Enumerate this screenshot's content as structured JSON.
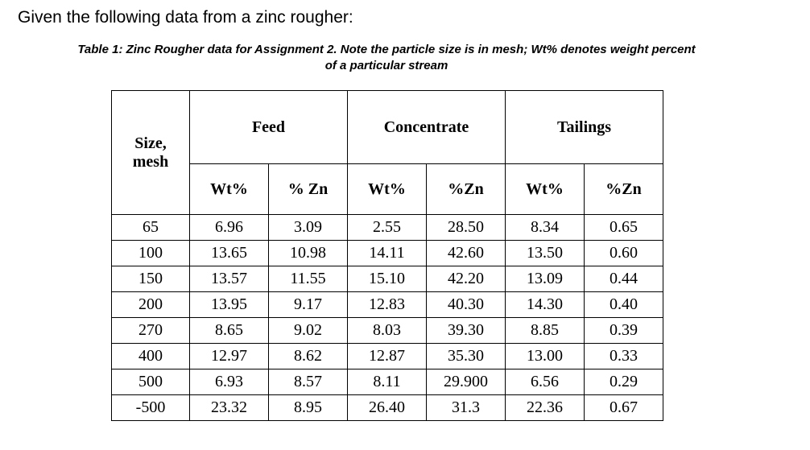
{
  "intro": "Given the following data from a zinc rougher:",
  "caption": {
    "line1": "Table 1: Zinc Rougher data for Assignment 2.  Note the particle size is in mesh; Wt% denotes weight percent",
    "line2": "of a particular stream"
  },
  "table": {
    "size_header_line1": "Size,",
    "size_header_line2": "mesh",
    "groups": [
      "Feed",
      "Concentrate",
      "Tailings"
    ],
    "sub_headers": [
      "Wt%",
      "% Zn",
      "Wt%",
      "%Zn",
      "Wt%",
      "%Zn"
    ],
    "rows": [
      [
        "65",
        "6.96",
        "3.09",
        "2.55",
        "28.50",
        "8.34",
        "0.65"
      ],
      [
        "100",
        "13.65",
        "10.98",
        "14.11",
        "42.60",
        "13.50",
        "0.60"
      ],
      [
        "150",
        "13.57",
        "11.55",
        "15.10",
        "42.20",
        "13.09",
        "0.44"
      ],
      [
        "200",
        "13.95",
        "9.17",
        "12.83",
        "40.30",
        "14.30",
        "0.40"
      ],
      [
        "270",
        "8.65",
        "9.02",
        "8.03",
        "39.30",
        "8.85",
        "0.39"
      ],
      [
        "400",
        "12.97",
        "8.62",
        "12.87",
        "35.30",
        "13.00",
        "0.33"
      ],
      [
        "500",
        "6.93",
        "8.57",
        "8.11",
        "29.900",
        "6.56",
        "0.29"
      ],
      [
        "-500",
        "23.32",
        "8.95",
        "26.40",
        "31.3",
        "22.36",
        "0.67"
      ]
    ]
  }
}
